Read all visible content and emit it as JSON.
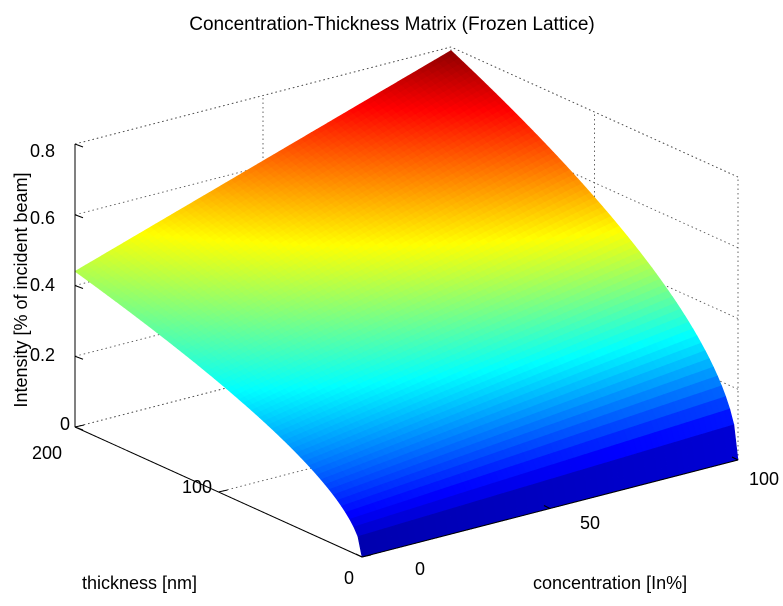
{
  "chart_data": {
    "type": "surface",
    "title": "Concentration-Thickness Matrix (Frozen Lattice)",
    "xlabel": "concentration [In%]",
    "ylabel": "thickness [nm]",
    "zlabel": "Intensity [% of incident beam]",
    "xlim": [
      0,
      100
    ],
    "ylim": [
      0,
      200
    ],
    "zlim": [
      0,
      0.8
    ],
    "x_ticks": [
      "0",
      "50",
      "100"
    ],
    "y_ticks": [
      "0",
      "100",
      "200"
    ],
    "z_ticks": [
      "0",
      "0.2",
      "0.4",
      "0.6",
      "0.8"
    ],
    "colormap": "jet",
    "grid": true,
    "corner_values": [
      {
        "concentration": 0,
        "thickness": 0,
        "intensity": 0
      },
      {
        "concentration": 100,
        "thickness": 0,
        "intensity": 0
      },
      {
        "concentration": 0,
        "thickness": 200,
        "intensity": 0.44
      },
      {
        "concentration": 100,
        "thickness": 200,
        "intensity": 0.79
      }
    ]
  }
}
